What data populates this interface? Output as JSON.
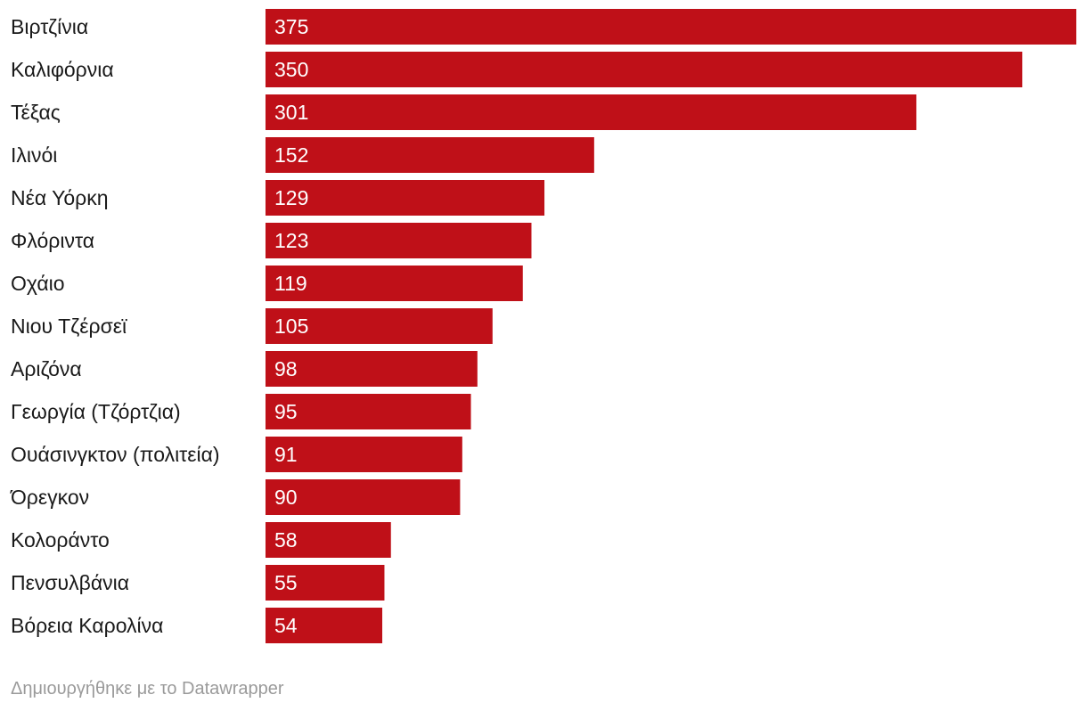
{
  "chart_data": {
    "type": "bar",
    "orientation": "horizontal",
    "title": "",
    "xlabel": "",
    "ylabel": "",
    "xlim": [
      0,
      375
    ],
    "grid": false,
    "bar_color": "#bf1018",
    "categories": [
      "Βιρτζίνια",
      "Καλιφόρνια",
      "Τέξας",
      "Ιλινόι",
      "Νέα Υόρκη",
      "Φλόριντα",
      "Οχάιο",
      "Νιου Τζέρσεϊ",
      "Αριζόνα",
      "Γεωργία (Τζόρτζια)",
      "Ουάσινγκτον (πολιτεία)",
      "Όρεγκον",
      "Κολοράντο",
      "Πενσυλβάνια",
      "Βόρεια Καρολίνα"
    ],
    "values": [
      375,
      350,
      301,
      152,
      129,
      123,
      119,
      105,
      98,
      95,
      91,
      90,
      58,
      55,
      54
    ]
  },
  "footer": {
    "credit": "Δημιουργήθηκε με το Datawrapper"
  }
}
